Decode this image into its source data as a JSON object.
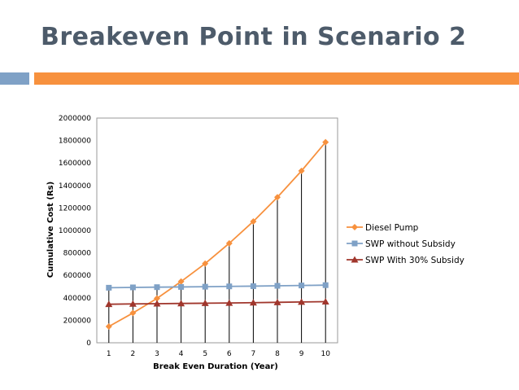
{
  "slide": {
    "title": "Breakeven Point in Scenario 2",
    "accent_colors": {
      "left_bar": "#7fa1c6",
      "right_bar": "#f7913e",
      "title": "#4d5b6a"
    }
  },
  "chart_data": {
    "type": "line",
    "title": "",
    "xlabel": "Break Even Duration (Year)",
    "ylabel": "Cumulative Cost (Rs)",
    "categories": [
      "1",
      "2",
      "3",
      "4",
      "5",
      "6",
      "7",
      "8",
      "9",
      "10"
    ],
    "ylim": [
      0,
      2000000
    ],
    "yticks": [
      "0",
      "200000",
      "400000",
      "600000",
      "800000",
      "1000000",
      "1200000",
      "1400000",
      "1600000",
      "1800000",
      "2000000"
    ],
    "grid": false,
    "drop_lines": true,
    "legend_position": "right",
    "series": [
      {
        "name": "Diesel Pump",
        "color": "#f7913e",
        "marker": "diamond",
        "values": [
          145000,
          265000,
          395000,
          545000,
          705000,
          885000,
          1080000,
          1295000,
          1530000,
          1785000
        ]
      },
      {
        "name": "SWP without Subsidy",
        "color": "#7fa1c6",
        "marker": "square",
        "values": [
          490000,
          493000,
          495000,
          497000,
          499000,
          502000,
          504000,
          507000,
          510000,
          513000
        ]
      },
      {
        "name": "SWP With 30% Subsidy",
        "color": "#a0362c",
        "marker": "triangle",
        "values": [
          343000,
          346000,
          348000,
          350000,
          352000,
          354000,
          357000,
          360000,
          363000,
          366000
        ]
      }
    ]
  }
}
